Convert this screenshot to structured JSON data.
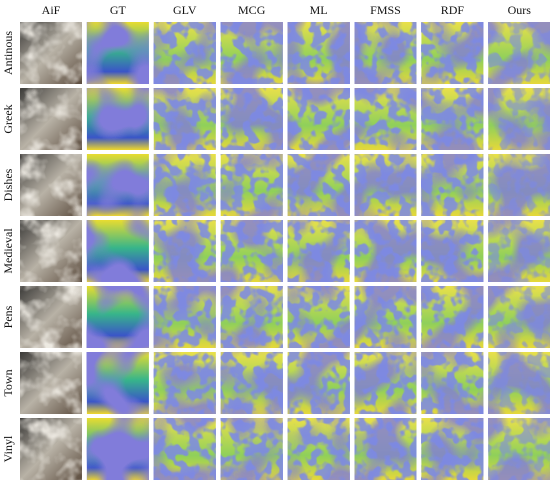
{
  "columns": [
    "AiF",
    "GT",
    "GLV",
    "MCG",
    "ML",
    "FMSS",
    "RDF",
    "Ours"
  ],
  "rows": [
    "Antinous",
    "Greek",
    "Dishes",
    "Medieval",
    "Pens",
    "Town",
    "Vinyl"
  ]
}
